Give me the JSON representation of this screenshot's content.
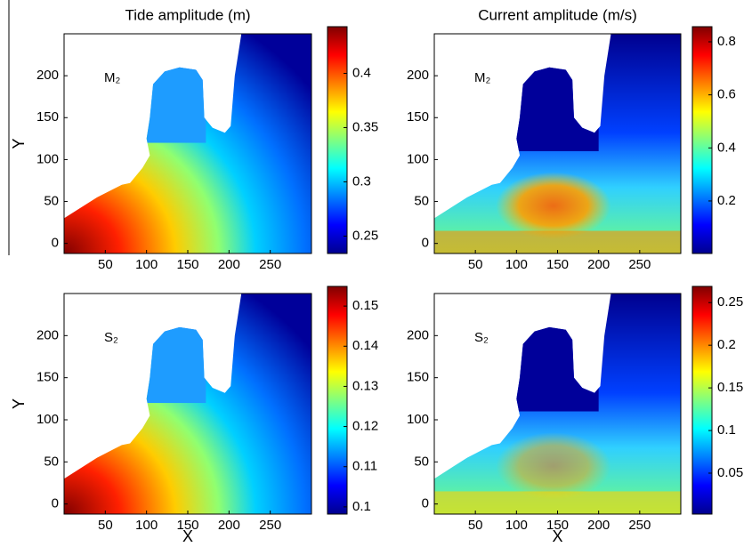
{
  "chart_data": [
    {
      "type": "heatmap",
      "title": "Tide amplitude (m)",
      "label": "M₂",
      "ylabel": "Y",
      "xlim": [
        0,
        300
      ],
      "ylim": [
        -12,
        250
      ],
      "xticks": [
        50,
        100,
        150,
        200,
        250
      ],
      "yticks": [
        0,
        50,
        100,
        150,
        200
      ],
      "clim": [
        0.234,
        0.443
      ],
      "cticks": [
        0.25,
        0.3,
        0.35,
        0.4
      ],
      "colormap": "jet"
    },
    {
      "type": "heatmap",
      "title": "Current amplitude (m/s)",
      "label": "M₂",
      "xlim": [
        0,
        300
      ],
      "ylim": [
        -12,
        250
      ],
      "xticks": [
        50,
        100,
        150,
        200,
        250
      ],
      "yticks": [
        0,
        50,
        100,
        150,
        200
      ],
      "clim": [
        0.002,
        0.857
      ],
      "cticks": [
        0.2,
        0.4,
        0.6,
        0.8
      ],
      "colormap": "jet"
    },
    {
      "type": "heatmap",
      "label": "S₂",
      "ylabel": "Y",
      "xlabel": "X",
      "xlim": [
        0,
        300
      ],
      "ylim": [
        -12,
        250
      ],
      "xticks": [
        50,
        100,
        150,
        200,
        250
      ],
      "yticks": [
        0,
        50,
        100,
        150,
        200
      ],
      "clim": [
        0.0982,
        0.1549
      ],
      "cticks": [
        0.1,
        0.11,
        0.12,
        0.13,
        0.14,
        0.15
      ],
      "colormap": "jet"
    },
    {
      "type": "heatmap",
      "label": "S₂",
      "xlabel": "X",
      "xlim": [
        0,
        300
      ],
      "ylim": [
        -12,
        250
      ],
      "xticks": [
        50,
        100,
        150,
        200,
        250
      ],
      "yticks": [
        0,
        50,
        100,
        150,
        200
      ],
      "clim": [
        0.002,
        0.269
      ],
      "cticks": [
        0.05,
        0.1,
        0.15,
        0.2,
        0.25
      ],
      "colormap": "jet"
    }
  ]
}
